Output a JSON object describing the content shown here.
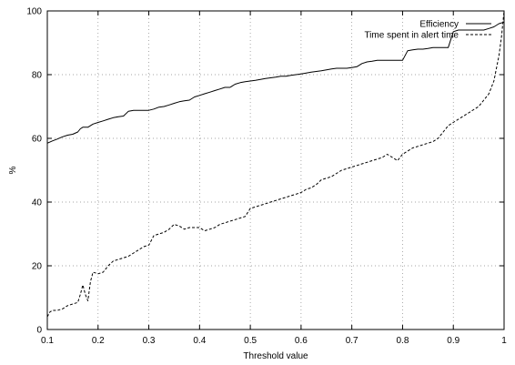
{
  "chart_data": {
    "type": "line",
    "title": "",
    "xlabel": "Threshold value",
    "ylabel": "%",
    "xlim": [
      0.1,
      1
    ],
    "ylim": [
      0,
      100
    ],
    "xticks": [
      "0.1",
      "0.2",
      "0.3",
      "0.4",
      "0.5",
      "0.6",
      "0.7",
      "0.8",
      "0.9",
      "1"
    ],
    "yticks": [
      "0",
      "20",
      "40",
      "60",
      "80",
      "100"
    ],
    "grid": true,
    "legend_position": "top-right",
    "series": [
      {
        "name": "Efficiency",
        "style": "solid",
        "color": "#000000",
        "x": [
          0.1,
          0.11,
          0.12,
          0.13,
          0.14,
          0.15,
          0.16,
          0.165,
          0.17,
          0.18,
          0.19,
          0.2,
          0.21,
          0.22,
          0.23,
          0.24,
          0.25,
          0.26,
          0.27,
          0.28,
          0.29,
          0.3,
          0.31,
          0.32,
          0.33,
          0.34,
          0.35,
          0.36,
          0.37,
          0.38,
          0.39,
          0.4,
          0.41,
          0.42,
          0.43,
          0.44,
          0.45,
          0.46,
          0.47,
          0.48,
          0.49,
          0.5,
          0.51,
          0.52,
          0.53,
          0.54,
          0.55,
          0.56,
          0.57,
          0.58,
          0.59,
          0.6,
          0.61,
          0.62,
          0.63,
          0.64,
          0.65,
          0.66,
          0.67,
          0.68,
          0.69,
          0.7,
          0.71,
          0.72,
          0.73,
          0.74,
          0.75,
          0.76,
          0.77,
          0.78,
          0.79,
          0.8,
          0.81,
          0.82,
          0.83,
          0.84,
          0.85,
          0.86,
          0.87,
          0.88,
          0.89,
          0.9,
          0.91,
          0.92,
          0.93,
          0.94,
          0.95,
          0.96,
          0.97,
          0.98,
          0.99,
          1.0
        ],
        "y": [
          58.5,
          59.2,
          59.8,
          60.5,
          61,
          61.3,
          62,
          63,
          63.5,
          63.5,
          64.5,
          65,
          65.5,
          66,
          66.5,
          66.8,
          67,
          68.5,
          68.8,
          68.8,
          68.8,
          68.8,
          69.2,
          69.8,
          70,
          70.5,
          71,
          71.5,
          71.8,
          72,
          73,
          73.5,
          74,
          74.5,
          75,
          75.5,
          76,
          76,
          77,
          77.5,
          77.8,
          78,
          78.2,
          78.5,
          78.8,
          79,
          79.2,
          79.5,
          79.5,
          79.8,
          80,
          80.2,
          80.5,
          80.8,
          81,
          81.2,
          81.5,
          81.8,
          82,
          82,
          82,
          82.2,
          82.5,
          83.5,
          84,
          84.2,
          84.5,
          84.5,
          84.5,
          84.5,
          84.5,
          84.5,
          87.5,
          87.8,
          88,
          88,
          88.2,
          88.5,
          88.5,
          88.5,
          88.5,
          93.5,
          94,
          94,
          94,
          94,
          94,
          94,
          94.5,
          95,
          96,
          96.5
        ]
      },
      {
        "name": "Time spent in alert time",
        "style": "dashed",
        "color": "#000000",
        "x": [
          0.1,
          0.105,
          0.11,
          0.12,
          0.13,
          0.14,
          0.15,
          0.16,
          0.165,
          0.17,
          0.175,
          0.18,
          0.185,
          0.19,
          0.2,
          0.21,
          0.22,
          0.23,
          0.24,
          0.25,
          0.26,
          0.27,
          0.28,
          0.29,
          0.3,
          0.31,
          0.32,
          0.33,
          0.34,
          0.35,
          0.36,
          0.37,
          0.38,
          0.39,
          0.4,
          0.41,
          0.42,
          0.43,
          0.44,
          0.45,
          0.46,
          0.47,
          0.48,
          0.49,
          0.5,
          0.51,
          0.52,
          0.53,
          0.54,
          0.55,
          0.56,
          0.57,
          0.58,
          0.59,
          0.6,
          0.61,
          0.62,
          0.63,
          0.64,
          0.65,
          0.66,
          0.67,
          0.68,
          0.69,
          0.7,
          0.71,
          0.72,
          0.73,
          0.74,
          0.75,
          0.76,
          0.77,
          0.78,
          0.79,
          0.8,
          0.81,
          0.82,
          0.83,
          0.84,
          0.85,
          0.86,
          0.87,
          0.88,
          0.89,
          0.9,
          0.91,
          0.92,
          0.93,
          0.94,
          0.95,
          0.96,
          0.97,
          0.98,
          0.99,
          0.995,
          1.0
        ],
        "y": [
          4,
          5.5,
          6,
          6,
          6.5,
          7.5,
          8,
          8.5,
          11,
          14,
          11,
          9,
          15,
          18,
          17.5,
          18,
          20,
          21.5,
          22,
          22.5,
          23,
          24,
          25,
          26,
          26.5,
          29.5,
          30,
          30.5,
          31.5,
          33,
          32.5,
          31.5,
          32,
          32,
          32,
          31,
          31.5,
          32,
          33,
          33.5,
          34,
          34.5,
          35,
          35.5,
          38,
          38.5,
          39,
          39.5,
          40,
          40.5,
          41,
          41.5,
          42,
          42.5,
          43,
          44,
          44.5,
          45.5,
          47,
          47.5,
          48,
          49,
          50,
          50.5,
          51,
          51.5,
          52,
          52.5,
          53,
          53.5,
          54,
          55,
          54,
          53,
          55,
          56,
          57,
          57.5,
          58,
          58.5,
          59,
          60,
          62,
          64,
          65,
          66,
          67,
          68,
          69,
          70,
          72,
          74,
          78,
          86,
          92,
          100
        ]
      }
    ]
  }
}
